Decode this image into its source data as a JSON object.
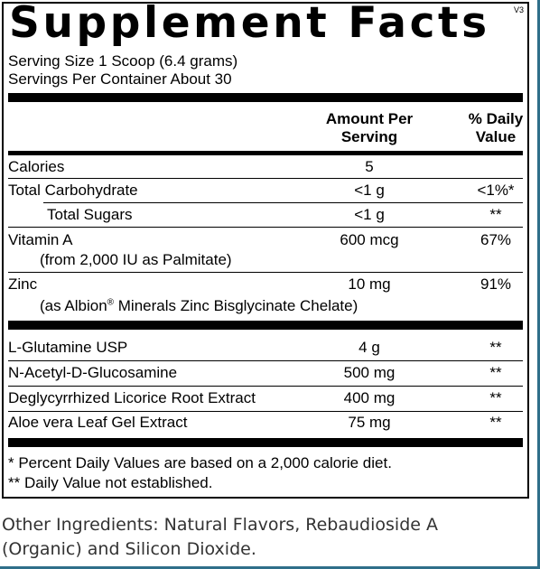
{
  "panel": {
    "title": "Supplement Facts",
    "version": "V3",
    "serving_size": "Serving Size 1 Scoop (6.4 grams)",
    "servings_per_container": "Servings Per Container About 30",
    "header": {
      "amount_line1": "Amount Per",
      "amount_line2": "Serving",
      "dv_line1": "% Daily",
      "dv_line2": "Value"
    },
    "nutrients": [
      {
        "name": "Calories",
        "amount": "5",
        "dv": ""
      },
      {
        "name": "Total Carbohydrate",
        "amount": "<1 g",
        "dv": "<1%*"
      },
      {
        "name": "Total Sugars",
        "amount": "<1 g",
        "dv": "**"
      },
      {
        "name": "Vitamin A",
        "sub": "(from 2,000 IU as Palmitate)",
        "amount": "600 mcg",
        "dv": "67%"
      },
      {
        "name": "Zinc",
        "sub_pre": "(as Albion",
        "sub_mark": "®",
        "sub_post": " Minerals Zinc Bisglycinate Chelate)",
        "amount": "10 mg",
        "dv": "91%"
      }
    ],
    "other_nutrients": [
      {
        "name": "L-Glutamine USP",
        "amount": "4 g",
        "dv": "**"
      },
      {
        "name": "N-Acetyl-D-Glucosamine",
        "amount": "500 mg",
        "dv": "**"
      },
      {
        "name": "Deglycyrrhized Licorice Root Extract",
        "amount": "400 mg",
        "dv": "**"
      },
      {
        "name": "Aloe vera Leaf Gel Extract",
        "amount": "75 mg",
        "dv": "**"
      }
    ],
    "footnotes": [
      "* Percent Daily Values are based on a 2,000 calorie diet.",
      "** Daily Value not established."
    ]
  },
  "other_ingredients": {
    "line1": "Other Ingredients: Natural Flavors, Rebaudioside A",
    "line2": "(Organic) and Silicon Dioxide."
  }
}
